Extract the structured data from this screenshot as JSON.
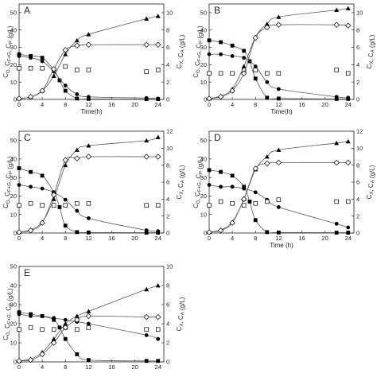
{
  "colors": {
    "axis": "#222222",
    "curve": "#555555",
    "marker": "#000000"
  },
  "chart_data": [
    {
      "panel": "A",
      "type": "scatter",
      "lines": true,
      "xlabel": "Time(h)",
      "ylabel_left": "C_G, C_F+G, C_P (g/L)",
      "ylabel_right": "C_X, C_A (g/L)",
      "xlim": [
        0,
        25
      ],
      "ylim_left": [
        0,
        55
      ],
      "ylim_right": [
        0,
        11
      ],
      "xticks": [
        0,
        4,
        8,
        12,
        16,
        20,
        24
      ],
      "yticks_left": [
        0,
        10,
        20,
        30,
        40,
        50
      ],
      "yticks_right": [
        0,
        2,
        4,
        6,
        8,
        10
      ],
      "series": [
        {
          "marker": "square-filled",
          "axis": "left",
          "x": [
            0,
            2,
            4,
            6,
            7,
            8,
            10,
            12,
            22,
            24
          ],
          "y": [
            26,
            25,
            24,
            17,
            11,
            5,
            0.5,
            0.3,
            0.2,
            0.2
          ]
        },
        {
          "marker": "circle-filled",
          "axis": "left",
          "x": [
            0,
            2,
            4,
            6,
            8,
            10,
            12,
            22,
            24
          ],
          "y": [
            25,
            24,
            22,
            16,
            8,
            3,
            1.5,
            0.8,
            0.5
          ]
        },
        {
          "marker": "square-open",
          "axis": "left",
          "x": [
            0,
            2,
            4,
            6,
            8,
            10,
            12,
            22,
            24
          ],
          "y": [
            18,
            18,
            18,
            17,
            19,
            17,
            17,
            16,
            17
          ]
        },
        {
          "marker": "triangle-filled",
          "axis": "right",
          "x": [
            0,
            2,
            4,
            6,
            8,
            10,
            12,
            22,
            24
          ],
          "y": [
            0.1,
            0.3,
            1.0,
            2.7,
            5.2,
            6.8,
            7.5,
            9.3,
            9.6
          ]
        },
        {
          "marker": "diamond-open",
          "axis": "right",
          "x": [
            0,
            2,
            4,
            6,
            8,
            10,
            12,
            22,
            24
          ],
          "y": [
            0.1,
            0.3,
            1.0,
            3.5,
            5.7,
            6.2,
            6.3,
            6.3,
            6.3
          ]
        }
      ]
    },
    {
      "panel": "B",
      "type": "scatter",
      "lines": true,
      "xlabel": "Time(h)",
      "ylabel_left": "C_G, C_F+G, C_P (g/L)",
      "ylabel_right": "C_X, C_A (g/L)",
      "xlim": [
        0,
        25
      ],
      "ylim_left": [
        0,
        55
      ],
      "ylim_right": [
        0,
        11
      ],
      "xticks": [
        0,
        4,
        8,
        12,
        16,
        20,
        24
      ],
      "yticks_left": [
        0,
        10,
        20,
        30,
        40,
        50
      ],
      "yticks_right": [
        0,
        2,
        4,
        6,
        8,
        10
      ],
      "series": [
        {
          "marker": "square-filled",
          "axis": "left",
          "x": [
            0,
            2,
            4,
            6,
            7,
            8,
            10,
            12,
            22,
            24
          ],
          "y": [
            34,
            33,
            31,
            28,
            22,
            12,
            1,
            0.5,
            0.3,
            0.3
          ]
        },
        {
          "marker": "circle-filled",
          "axis": "left",
          "x": [
            0,
            2,
            4,
            6,
            8,
            10,
            12,
            22,
            24
          ],
          "y": [
            26,
            26,
            25,
            24,
            19,
            10,
            6,
            1.5,
            1
          ]
        },
        {
          "marker": "square-open",
          "axis": "left",
          "x": [
            0,
            2,
            4,
            6,
            8,
            10,
            12,
            22,
            24
          ],
          "y": [
            15,
            15,
            15,
            17,
            17,
            15,
            15,
            17,
            15
          ]
        },
        {
          "marker": "triangle-filled",
          "axis": "right",
          "x": [
            0,
            2,
            4,
            6,
            8,
            10,
            12,
            22,
            24
          ],
          "y": [
            0.1,
            0.4,
            1.2,
            3.8,
            7.2,
            8.7,
            9.5,
            10.3,
            10.5
          ]
        },
        {
          "marker": "diamond-open",
          "axis": "right",
          "x": [
            0,
            2,
            4,
            6,
            8,
            10,
            12,
            22,
            24
          ],
          "y": [
            0.1,
            0.3,
            1.0,
            3.0,
            7.1,
            8.3,
            8.6,
            8.6,
            8.5
          ]
        }
      ]
    },
    {
      "panel": "C",
      "type": "scatter",
      "lines": true,
      "xlabel": "",
      "ylabel_left": "C_G, C_F+G, C_P (g/L)",
      "ylabel_right": "C_X, C_A (g/L)",
      "xlim": [
        0,
        25
      ],
      "ylim_left": [
        0,
        55
      ],
      "ylim_right": [
        0,
        12
      ],
      "xticks": [
        0,
        4,
        8,
        12,
        16,
        20,
        24
      ],
      "yticks_left": [
        0,
        10,
        20,
        30,
        40,
        50
      ],
      "yticks_right": [
        0,
        2,
        4,
        6,
        8,
        10,
        12
      ],
      "series": [
        {
          "marker": "square-filled",
          "axis": "left",
          "x": [
            0,
            2,
            4,
            6,
            7,
            8,
            10,
            12,
            22,
            24
          ],
          "y": [
            35,
            33,
            31,
            22,
            14,
            4,
            0.5,
            0.3,
            0.2,
            0.2
          ]
        },
        {
          "marker": "circle-filled",
          "axis": "left",
          "x": [
            0,
            2,
            4,
            6,
            8,
            10,
            12,
            22,
            24
          ],
          "y": [
            26,
            25,
            24,
            22,
            18,
            12,
            8,
            1.5,
            1
          ]
        },
        {
          "marker": "square-open",
          "axis": "left",
          "x": [
            0,
            2,
            4,
            6,
            8,
            10,
            12,
            22,
            24
          ],
          "y": [
            15,
            16,
            15,
            15,
            15,
            16,
            16,
            15,
            15
          ]
        },
        {
          "marker": "triangle-filled",
          "axis": "right",
          "x": [
            0,
            2,
            4,
            6,
            8,
            10,
            12,
            22,
            24
          ],
          "y": [
            0.1,
            0.4,
            1.3,
            4.0,
            8.0,
            9.8,
            10.3,
            10.9,
            11.3
          ]
        },
        {
          "marker": "diamond-open",
          "axis": "right",
          "x": [
            0,
            2,
            4,
            6,
            8,
            10,
            12,
            22,
            24
          ],
          "y": [
            0.1,
            0.3,
            1.2,
            4.5,
            8.6,
            8.8,
            9.0,
            9.0,
            9.0
          ]
        }
      ]
    },
    {
      "panel": "D",
      "type": "scatter",
      "lines": true,
      "xlabel": "Time (h)",
      "ylabel_left": "C_G, C_F+G, C_P (g/L)",
      "ylabel_right": "C_X, C_A (g/L)",
      "xlim": [
        0,
        25
      ],
      "ylim_left": [
        0,
        55
      ],
      "ylim_right": [
        0,
        12
      ],
      "xticks": [
        0,
        4,
        8,
        12,
        16,
        20,
        24
      ],
      "yticks_left": [
        0,
        10,
        20,
        30,
        40,
        50
      ],
      "yticks_right": [
        0,
        2,
        4,
        6,
        8,
        10,
        12
      ],
      "series": [
        {
          "marker": "square-filled",
          "axis": "left",
          "x": [
            0,
            2,
            4,
            6,
            7,
            8,
            10,
            12,
            22,
            24
          ],
          "y": [
            34,
            33,
            31,
            25,
            17,
            7,
            0.5,
            0.3,
            0.2,
            0.2
          ]
        },
        {
          "marker": "circle-filled",
          "axis": "left",
          "x": [
            0,
            2,
            4,
            6,
            8,
            10,
            12,
            22,
            24
          ],
          "y": [
            26,
            25,
            25,
            24,
            22,
            18,
            14,
            5,
            3
          ]
        },
        {
          "marker": "square-open",
          "axis": "left",
          "x": [
            0,
            2,
            4,
            6,
            8,
            10,
            12,
            22,
            24
          ],
          "y": [
            15,
            17,
            16,
            15,
            16,
            17,
            18,
            17,
            17
          ]
        },
        {
          "marker": "triangle-filled",
          "axis": "right",
          "x": [
            0,
            2,
            4,
            6,
            8,
            10,
            12,
            22,
            24
          ],
          "y": [
            0.1,
            0.4,
            1.3,
            4.0,
            7.5,
            9.0,
            9.8,
            10.6,
            10.8
          ]
        },
        {
          "marker": "diamond-open",
          "axis": "right",
          "x": [
            0,
            2,
            4,
            6,
            8,
            10,
            12,
            22,
            24
          ],
          "y": [
            0.1,
            0.3,
            1.2,
            4.0,
            7.6,
            8.2,
            8.3,
            8.3,
            8.3
          ]
        }
      ]
    },
    {
      "panel": "E",
      "type": "scatter",
      "lines": true,
      "xlabel": "",
      "ylabel_left": "C_G, C_F+G, C_P (g/L)",
      "ylabel_right": "C_X, C_A (g/L)",
      "xlim": [
        0,
        25
      ],
      "ylim_left": [
        0,
        50
      ],
      "ylim_right": [
        0,
        10
      ],
      "xticks": [
        0,
        4,
        8,
        12,
        16,
        20,
        24
      ],
      "yticks_left": [
        0,
        10,
        20,
        30,
        40,
        50
      ],
      "yticks_right": [
        0,
        2,
        4,
        6,
        8,
        10
      ],
      "series": [
        {
          "marker": "square-filled",
          "axis": "left",
          "x": [
            0,
            2,
            4,
            6,
            7,
            8,
            10,
            12,
            22,
            24
          ],
          "y": [
            26,
            25,
            24,
            22,
            18,
            12,
            4,
            1,
            0.5,
            0.5
          ]
        },
        {
          "marker": "circle-filled",
          "axis": "left",
          "x": [
            0,
            2,
            4,
            6,
            8,
            10,
            12,
            22,
            24
          ],
          "y": [
            25,
            24,
            24,
            23,
            22,
            21,
            20,
            14,
            12
          ]
        },
        {
          "marker": "square-open",
          "axis": "left",
          "x": [
            0,
            2,
            4,
            6,
            8,
            10,
            12,
            22,
            24
          ],
          "y": [
            17,
            18,
            17,
            17,
            18,
            17,
            18,
            17,
            17
          ]
        },
        {
          "marker": "triangle-filled",
          "axis": "right",
          "x": [
            0,
            2,
            4,
            6,
            8,
            10,
            12,
            22,
            24
          ],
          "y": [
            0.1,
            0.3,
            1.0,
            2.4,
            4.0,
            4.8,
            5.3,
            7.6,
            8.0
          ]
        },
        {
          "marker": "diamond-open",
          "axis": "right",
          "x": [
            0,
            2,
            4,
            6,
            8,
            10,
            12,
            22,
            24
          ],
          "y": [
            0.1,
            0.2,
            0.8,
            2.0,
            3.6,
            4.4,
            4.8,
            4.7,
            4.7
          ]
        }
      ]
    }
  ]
}
